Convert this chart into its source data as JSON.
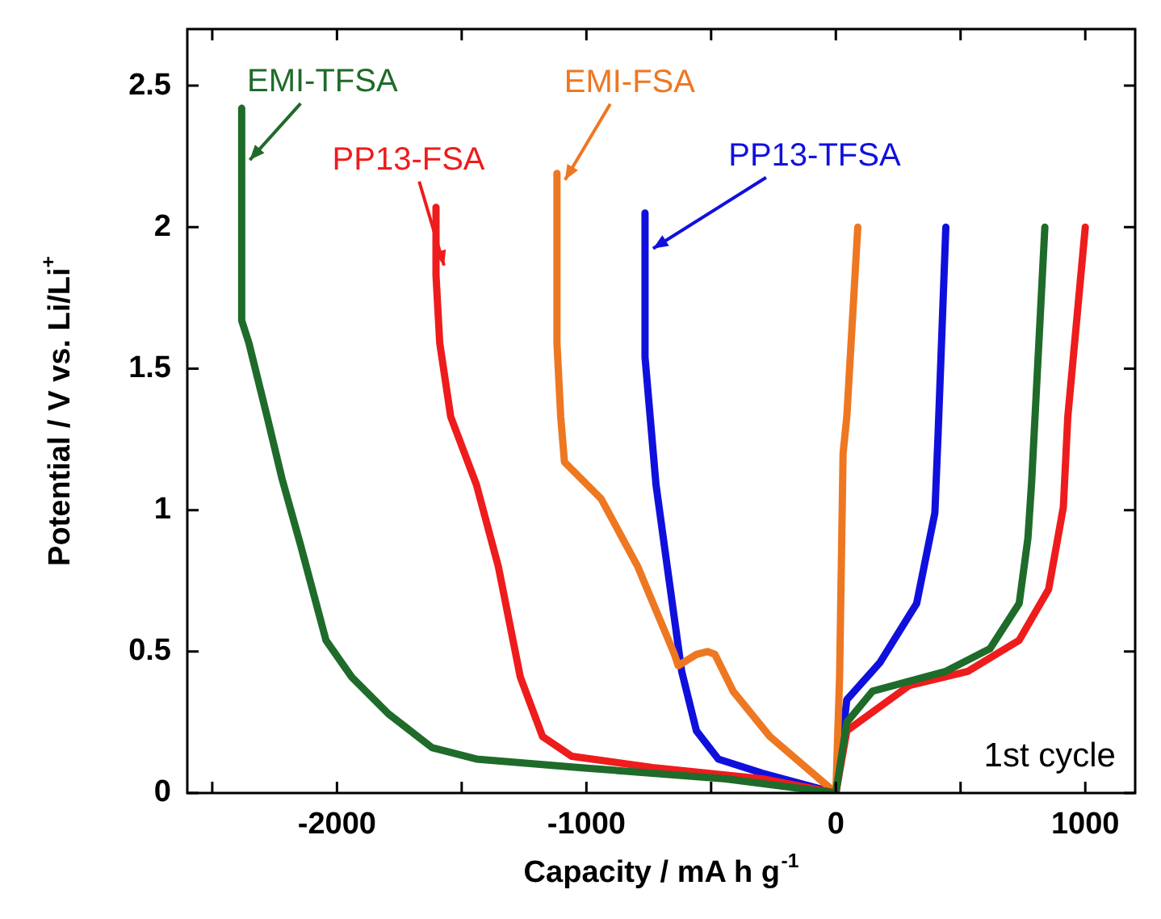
{
  "chart_data": {
    "type": "line",
    "xlabel": "Capacity / mA h g$^{-1}$",
    "ylabel": "Potential / V vs. Li/Li$^{+}$",
    "xlim": [
      -2600,
      1200
    ],
    "ylim": [
      0,
      2.7
    ],
    "xticks": [
      {
        "value": -2500,
        "label": null
      },
      -2000,
      {
        "value": -1500,
        "label": null
      },
      -1000,
      {
        "value": -500,
        "label": null
      },
      0,
      {
        "value": 500,
        "label": null
      },
      1000
    ],
    "yticks": [
      0,
      0.5,
      1,
      1.5,
      2,
      2.5
    ],
    "marker": "none",
    "line_style": "solid",
    "annotations": [
      "1st cycle"
    ],
    "series": [
      {
        "name": "EMI-TFSA",
        "color": "#1f6b2a",
        "x": [
          -2382,
          -2382,
          -2353,
          -2280,
          -2220,
          -2147,
          -2044,
          -1941,
          -1794,
          -1618,
          -1441,
          -1029,
          -441,
          0,
          44,
          147,
          441,
          618,
          735,
          770,
          785,
          838
        ],
        "values": [
          2.42,
          1.67,
          1.59,
          1.33,
          1.11,
          0.88,
          0.54,
          0.41,
          0.28,
          0.16,
          0.12,
          0.09,
          0.05,
          0,
          0.25,
          0.36,
          0.43,
          0.51,
          0.67,
          0.9,
          1.1,
          2.0
        ]
      },
      {
        "name": "PP13-FSA",
        "color": "#ee1c1c",
        "x": [
          -1603,
          -1603,
          -1588,
          -1544,
          -1441,
          -1353,
          -1265,
          -1176,
          -1059,
          -735,
          -294,
          0,
          44,
          294,
          529,
          735,
          853,
          912,
          930,
          1000
        ],
        "values": [
          2.07,
          1.83,
          1.59,
          1.33,
          1.09,
          0.8,
          0.41,
          0.2,
          0.13,
          0.09,
          0.05,
          0,
          0.22,
          0.38,
          0.43,
          0.54,
          0.72,
          1.01,
          1.33,
          2.0
        ]
      },
      {
        "name": "EMI-FSA",
        "color": "#ee7722",
        "x": [
          -1118,
          -1118,
          -1103,
          -1088,
          -941,
          -794,
          -647,
          -632,
          -559,
          -515,
          -485,
          -412,
          -265,
          0,
          15,
          29,
          44,
          88
        ],
        "values": [
          2.19,
          1.59,
          1.33,
          1.17,
          1.04,
          0.8,
          0.49,
          0.45,
          0.49,
          0.5,
          0.49,
          0.36,
          0.2,
          0,
          0.41,
          1.2,
          1.33,
          2.0
        ]
      },
      {
        "name": "PP13-TFSA",
        "color": "#1010dd",
        "x": [
          -765,
          -765,
          -721,
          -676,
          -618,
          -559,
          -471,
          -294,
          0,
          44,
          176,
          324,
          397,
          410,
          441
        ],
        "values": [
          2.05,
          1.54,
          1.09,
          0.8,
          0.43,
          0.22,
          0.12,
          0.07,
          0,
          0.33,
          0.46,
          0.67,
          0.99,
          1.27,
          2.0
        ]
      }
    ]
  }
}
